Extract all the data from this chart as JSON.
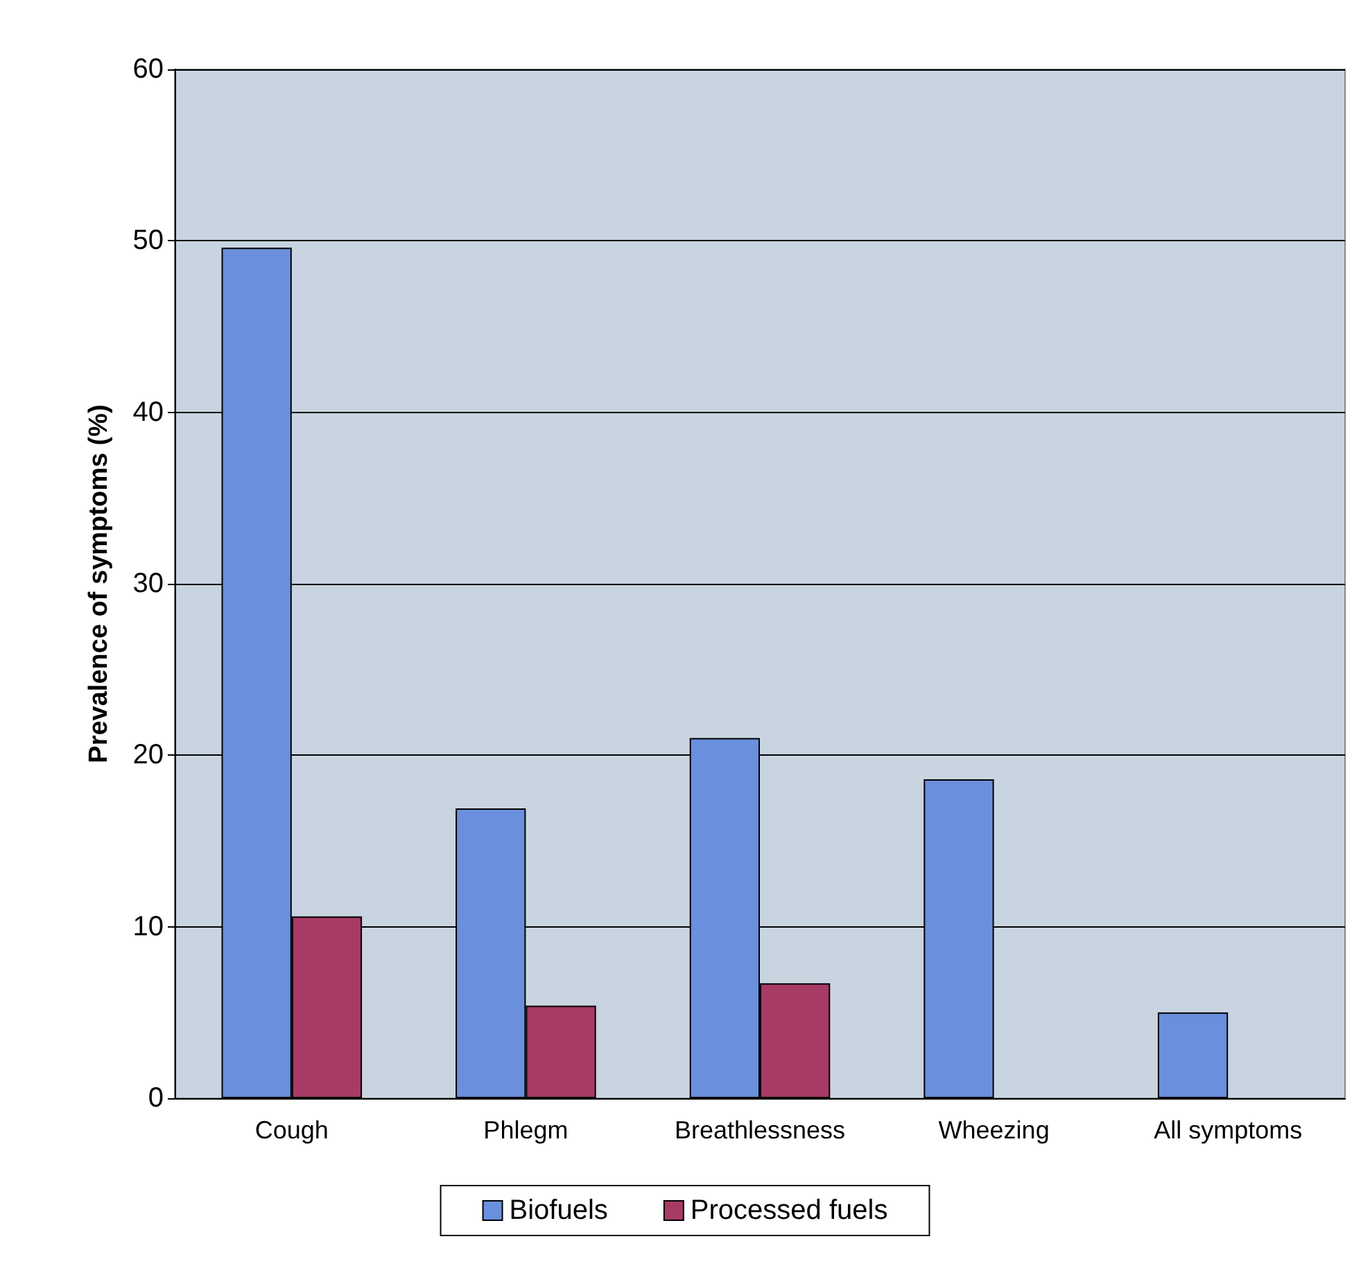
{
  "chart_data": {
    "type": "bar",
    "ylabel": "Prevalence of symptoms (%)",
    "categories": [
      "Cough",
      "Phlegm",
      "Breathlessness",
      "Wheezing",
      "All symptoms"
    ],
    "series": [
      {
        "name": "Biofuels",
        "color": "#6a8fdc",
        "values": [
          49.6,
          16.9,
          21.0,
          18.6,
          5.0
        ]
      },
      {
        "name": "Processed fuels",
        "color": "#a83a66",
        "values": [
          10.6,
          5.4,
          6.7,
          null,
          null
        ]
      }
    ],
    "ylim": [
      0,
      60
    ],
    "yticks": [
      0,
      10,
      20,
      30,
      40,
      50,
      60
    ],
    "grid": "y",
    "legend": "bottom"
  }
}
